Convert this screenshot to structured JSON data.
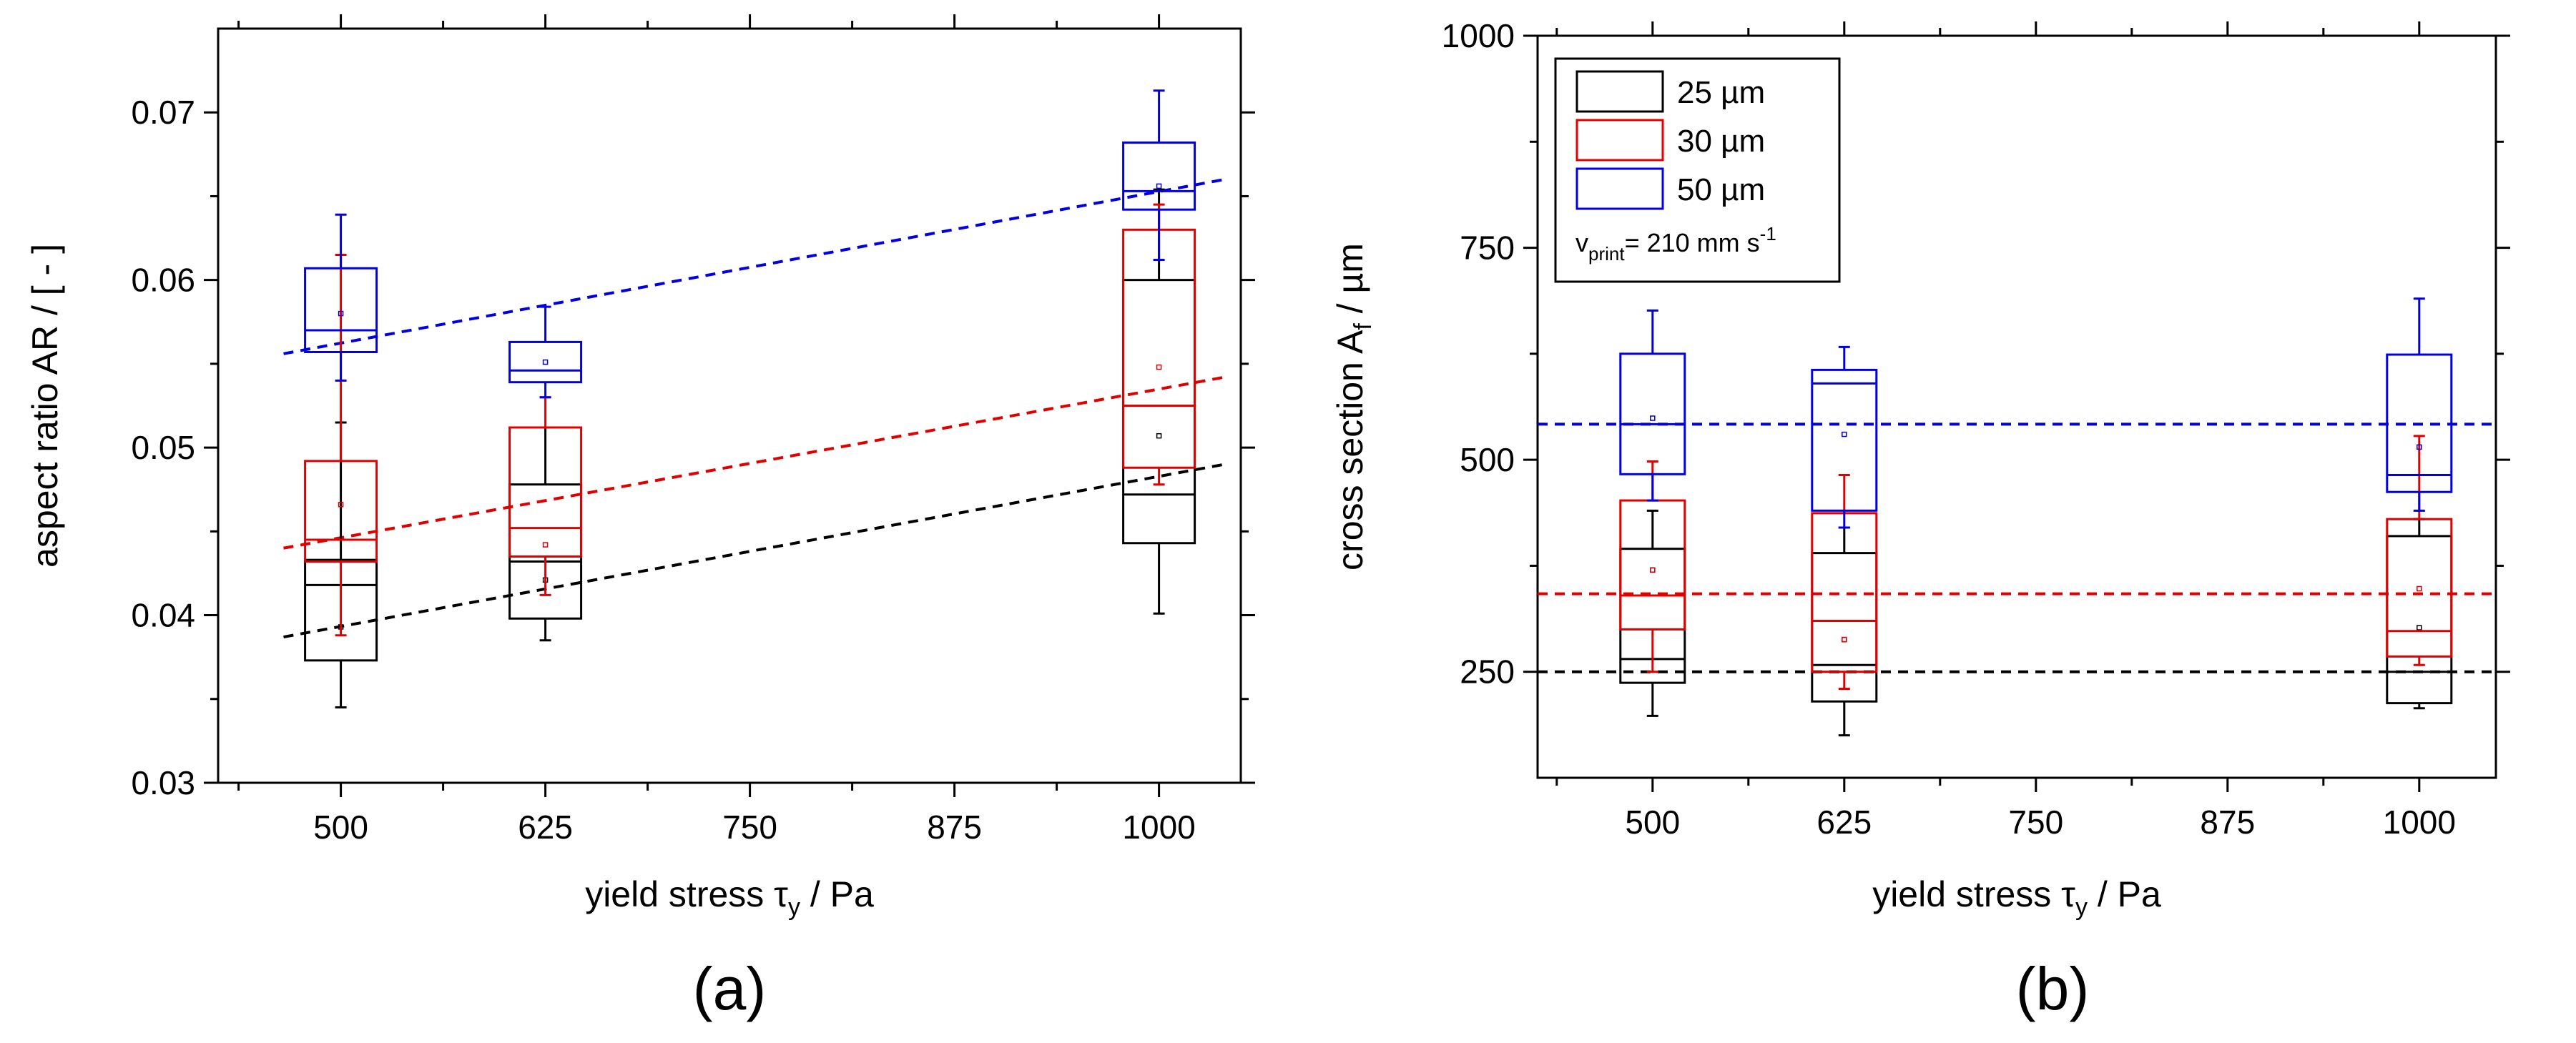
{
  "chart_data": [
    {
      "type": "box",
      "panel_label": "(a)",
      "xlabel": {
        "main": "yield stress ",
        "symbol": "τ",
        "sub": "y",
        "tail": " / Pa"
      },
      "ylabel": "aspect ratio AR / [ - ]",
      "xlim": [
        425,
        1050
      ],
      "ylim": [
        0.03,
        0.075
      ],
      "xticks": [
        500,
        625,
        750,
        875,
        1000
      ],
      "xtick_labels": [
        "500",
        "625",
        "750",
        "875",
        "1000"
      ],
      "yticks": [
        0.03,
        0.04,
        0.05,
        0.06,
        0.07
      ],
      "ytick_labels": [
        "0.03",
        "0.04",
        "0.05",
        "0.06",
        "0.07"
      ],
      "series": [
        {
          "name": "25 µm",
          "color": "#000000",
          "boxes": [
            {
              "x": 500,
              "whisker_low": 0.0345,
              "q1": 0.0373,
              "median": 0.0418,
              "q3": 0.0433,
              "whisker_high": 0.0515,
              "mean": 0.0393
            },
            {
              "x": 625,
              "whisker_low": 0.0385,
              "q1": 0.0398,
              "median": 0.0432,
              "q3": 0.0478,
              "whisker_high": 0.0512,
              "mean": 0.0421
            },
            {
              "x": 1000,
              "whisker_low": 0.0401,
              "q1": 0.0443,
              "median": 0.0472,
              "q3": 0.06,
              "whisker_high": 0.0654,
              "mean": 0.0507
            }
          ],
          "trend": {
            "x": [
              465,
              1040
            ],
            "y": [
              0.0387,
              0.049
            ]
          }
        },
        {
          "name": "30 µm",
          "color": "#e00000",
          "boxes": [
            {
              "x": 500,
              "whisker_low": 0.0388,
              "q1": 0.0432,
              "median": 0.0445,
              "q3": 0.0492,
              "whisker_high": 0.0615,
              "mean": 0.0466
            },
            {
              "x": 625,
              "whisker_low": 0.0412,
              "q1": 0.0435,
              "median": 0.0452,
              "q3": 0.0512,
              "whisker_high": 0.053,
              "mean": 0.0442
            },
            {
              "x": 1000,
              "whisker_low": 0.0478,
              "q1": 0.0488,
              "median": 0.0525,
              "q3": 0.063,
              "whisker_high": 0.0645,
              "mean": 0.0548
            }
          ],
          "trend": {
            "x": [
              465,
              1040
            ],
            "y": [
              0.044,
              0.0542
            ]
          }
        },
        {
          "name": "50 µm",
          "color": "#0000e0",
          "boxes": [
            {
              "x": 500,
              "whisker_low": 0.054,
              "q1": 0.0557,
              "median": 0.057,
              "q3": 0.0607,
              "whisker_high": 0.0639,
              "mean": 0.058
            },
            {
              "x": 625,
              "whisker_low": 0.053,
              "q1": 0.0539,
              "median": 0.0546,
              "q3": 0.0563,
              "whisker_high": 0.0584,
              "mean": 0.0551
            },
            {
              "x": 1000,
              "whisker_low": 0.0612,
              "q1": 0.0642,
              "median": 0.0653,
              "q3": 0.0682,
              "whisker_high": 0.0713,
              "mean": 0.0656
            }
          ],
          "trend": {
            "x": [
              465,
              1040
            ],
            "y": [
              0.0556,
              0.066
            ]
          }
        }
      ]
    },
    {
      "type": "box",
      "panel_label": "(b)",
      "xlabel": {
        "main": "yield stress ",
        "symbol": "τ",
        "sub": "y",
        "tail": " / Pa"
      },
      "ylabel": {
        "main": "cross section A",
        "sub": "f",
        "tail": " / µm"
      },
      "xlim": [
        425,
        1050
      ],
      "ylim": [
        125,
        1000
      ],
      "xticks": [
        500,
        625,
        750,
        875,
        1000
      ],
      "xtick_labels": [
        "500",
        "625",
        "750",
        "875",
        "1000"
      ],
      "yticks": [
        250,
        500,
        750,
        1000
      ],
      "ytick_labels": [
        "250",
        "500",
        "750",
        "1000"
      ],
      "legend": {
        "position": "top-left",
        "entries": [
          "25 µm",
          "30 µm",
          "50 µm"
        ],
        "annotation": {
          "main": "v",
          "sub": "print",
          "mid": "= 210 mm s",
          "sup": "-1"
        }
      },
      "series": [
        {
          "name": "25 µm",
          "color": "#000000",
          "boxes": [
            {
              "x": 500,
              "whisker_low": 198,
              "q1": 237,
              "median": 265,
              "q3": 395,
              "whisker_high": 440,
              "mean": 370
            },
            {
              "x": 625,
              "whisker_low": 175,
              "q1": 215,
              "median": 258,
              "q3": 390,
              "whisker_high": 420,
              "mean": 288
            },
            {
              "x": 1000,
              "whisker_low": 207,
              "q1": 213,
              "median": 250,
              "q3": 410,
              "whisker_high": 430,
              "mean": 302
            }
          ],
          "trend": {
            "x": [
              425,
              1050
            ],
            "y": [
              250,
              250
            ]
          }
        },
        {
          "name": "30 µm",
          "color": "#e00000",
          "boxes": [
            {
              "x": 500,
              "whisker_low": 250,
              "q1": 300,
              "median": 340,
              "q3": 452,
              "whisker_high": 498,
              "mean": 370
            },
            {
              "x": 625,
              "whisker_low": 230,
              "q1": 250,
              "median": 310,
              "q3": 437,
              "whisker_high": 482,
              "mean": 288
            },
            {
              "x": 1000,
              "whisker_low": 258,
              "q1": 268,
              "median": 298,
              "q3": 430,
              "whisker_high": 528,
              "mean": 348
            }
          ],
          "trend": {
            "x": [
              425,
              1050
            ],
            "y": [
              342,
              342
            ]
          }
        },
        {
          "name": "50 µm",
          "color": "#0000e0",
          "boxes": [
            {
              "x": 500,
              "whisker_low": 452,
              "q1": 483,
              "median": 542,
              "q3": 625,
              "whisker_high": 676,
              "mean": 549
            },
            {
              "x": 625,
              "whisker_low": 420,
              "q1": 440,
              "median": 590,
              "q3": 606,
              "whisker_high": 633,
              "mean": 530
            },
            {
              "x": 1000,
              "whisker_low": 440,
              "q1": 462,
              "median": 482,
              "q3": 624,
              "whisker_high": 690,
              "mean": 515
            }
          ],
          "trend": {
            "x": [
              425,
              1050
            ],
            "y": [
              542,
              542
            ]
          }
        }
      ]
    }
  ]
}
